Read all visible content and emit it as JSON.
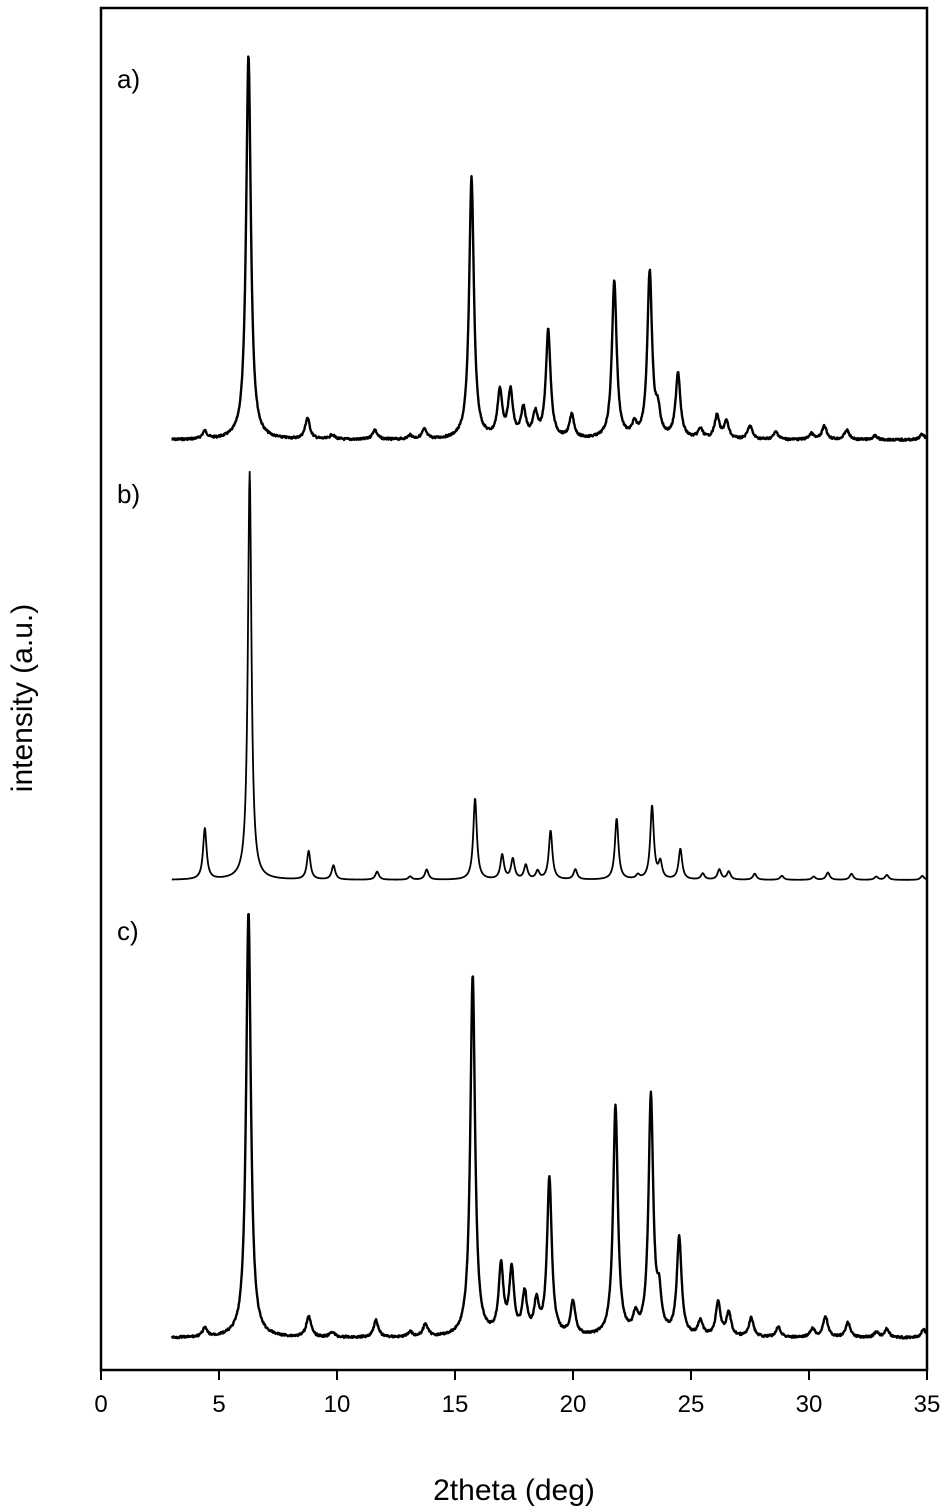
{
  "chart_data": {
    "type": "line",
    "title": "",
    "xlabel": "2theta (deg)",
    "ylabel": "intensity (a.u.)",
    "xlim": [
      0,
      35
    ],
    "xticks": [
      0,
      5,
      10,
      15,
      20,
      25,
      30,
      35
    ],
    "y_tick_labels": "none",
    "grid": false,
    "legend": "none",
    "line_color": "#000000",
    "panels": [
      {
        "label": "a)",
        "x_range": [
          3,
          35
        ],
        "peaks": [
          {
            "x": 4.4,
            "h": 0.02
          },
          {
            "x": 6.25,
            "h": 1.0
          },
          {
            "x": 8.75,
            "h": 0.055
          },
          {
            "x": 9.8,
            "h": 0.012
          },
          {
            "x": 11.6,
            "h": 0.025
          },
          {
            "x": 13.1,
            "h": 0.01
          },
          {
            "x": 13.7,
            "h": 0.025
          },
          {
            "x": 15.7,
            "h": 0.68
          },
          {
            "x": 16.9,
            "h": 0.12
          },
          {
            "x": 17.35,
            "h": 0.12
          },
          {
            "x": 17.9,
            "h": 0.075
          },
          {
            "x": 18.4,
            "h": 0.06
          },
          {
            "x": 18.95,
            "h": 0.28
          },
          {
            "x": 19.95,
            "h": 0.06
          },
          {
            "x": 21.75,
            "h": 0.41
          },
          {
            "x": 22.6,
            "h": 0.03
          },
          {
            "x": 23.25,
            "h": 0.43
          },
          {
            "x": 23.6,
            "h": 0.06
          },
          {
            "x": 24.45,
            "h": 0.17
          },
          {
            "x": 25.4,
            "h": 0.025
          },
          {
            "x": 26.1,
            "h": 0.06
          },
          {
            "x": 26.5,
            "h": 0.045
          },
          {
            "x": 27.5,
            "h": 0.035
          },
          {
            "x": 28.6,
            "h": 0.02
          },
          {
            "x": 30.1,
            "h": 0.015
          },
          {
            "x": 30.65,
            "h": 0.035
          },
          {
            "x": 31.6,
            "h": 0.025
          },
          {
            "x": 32.8,
            "h": 0.01
          },
          {
            "x": 34.8,
            "h": 0.015
          }
        ]
      },
      {
        "label": "b)",
        "x_range": [
          3,
          35
        ],
        "peaks": [
          {
            "x": 4.4,
            "h": 0.125
          },
          {
            "x": 6.3,
            "h": 1.0
          },
          {
            "x": 8.8,
            "h": 0.07
          },
          {
            "x": 9.85,
            "h": 0.035
          },
          {
            "x": 11.7,
            "h": 0.02
          },
          {
            "x": 13.1,
            "h": 0.008
          },
          {
            "x": 13.8,
            "h": 0.025
          },
          {
            "x": 15.85,
            "h": 0.2
          },
          {
            "x": 17.0,
            "h": 0.06
          },
          {
            "x": 17.45,
            "h": 0.05
          },
          {
            "x": 18.0,
            "h": 0.035
          },
          {
            "x": 18.5,
            "h": 0.02
          },
          {
            "x": 19.05,
            "h": 0.12
          },
          {
            "x": 20.1,
            "h": 0.025
          },
          {
            "x": 21.85,
            "h": 0.15
          },
          {
            "x": 22.75,
            "h": 0.01
          },
          {
            "x": 23.35,
            "h": 0.18
          },
          {
            "x": 23.7,
            "h": 0.04
          },
          {
            "x": 24.55,
            "h": 0.075
          },
          {
            "x": 25.5,
            "h": 0.015
          },
          {
            "x": 26.2,
            "h": 0.025
          },
          {
            "x": 26.6,
            "h": 0.02
          },
          {
            "x": 27.7,
            "h": 0.015
          },
          {
            "x": 28.85,
            "h": 0.01
          },
          {
            "x": 30.2,
            "h": 0.008
          },
          {
            "x": 30.8,
            "h": 0.018
          },
          {
            "x": 31.8,
            "h": 0.015
          },
          {
            "x": 32.85,
            "h": 0.008
          },
          {
            "x": 33.3,
            "h": 0.012
          },
          {
            "x": 34.8,
            "h": 0.01
          }
        ]
      },
      {
        "label": "c)",
        "x_range": [
          3,
          35
        ],
        "peaks": [
          {
            "x": 4.4,
            "h": 0.02
          },
          {
            "x": 6.25,
            "h": 1.0
          },
          {
            "x": 8.8,
            "h": 0.05
          },
          {
            "x": 9.8,
            "h": 0.012
          },
          {
            "x": 11.65,
            "h": 0.04
          },
          {
            "x": 13.1,
            "h": 0.012
          },
          {
            "x": 13.75,
            "h": 0.03
          },
          {
            "x": 15.75,
            "h": 0.85
          },
          {
            "x": 16.95,
            "h": 0.16
          },
          {
            "x": 17.4,
            "h": 0.15
          },
          {
            "x": 17.95,
            "h": 0.095
          },
          {
            "x": 18.45,
            "h": 0.075
          },
          {
            "x": 19.0,
            "h": 0.37
          },
          {
            "x": 20.0,
            "h": 0.08
          },
          {
            "x": 21.8,
            "h": 0.54
          },
          {
            "x": 22.65,
            "h": 0.04
          },
          {
            "x": 23.3,
            "h": 0.56
          },
          {
            "x": 23.65,
            "h": 0.08
          },
          {
            "x": 24.5,
            "h": 0.23
          },
          {
            "x": 25.4,
            "h": 0.035
          },
          {
            "x": 26.15,
            "h": 0.08
          },
          {
            "x": 26.6,
            "h": 0.055
          },
          {
            "x": 27.55,
            "h": 0.045
          },
          {
            "x": 28.7,
            "h": 0.025
          },
          {
            "x": 30.15,
            "h": 0.02
          },
          {
            "x": 30.7,
            "h": 0.05
          },
          {
            "x": 31.65,
            "h": 0.035
          },
          {
            "x": 32.85,
            "h": 0.012
          },
          {
            "x": 33.3,
            "h": 0.02
          },
          {
            "x": 34.85,
            "h": 0.02
          }
        ]
      }
    ]
  }
}
